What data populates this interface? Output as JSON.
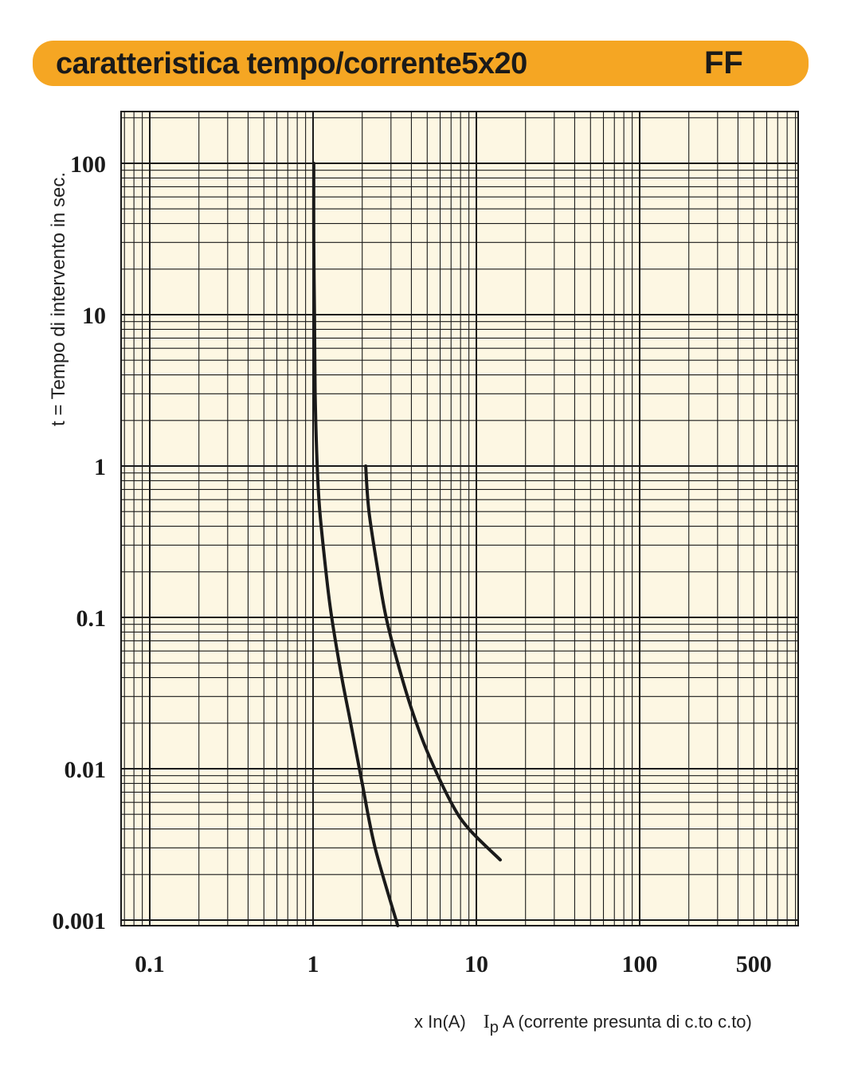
{
  "header": {
    "title": "caratteristica tempo/corrente5x20",
    "code": "FF",
    "background_color": "#f5a623"
  },
  "footer": {
    "unit_label": "x In(A)",
    "ip_symbol": "I",
    "ip_subscript": "p",
    "ip_description": "A (corrente presunta di c.to c.to)"
  },
  "chart_data": {
    "type": "line",
    "title": "caratteristica tempo/corrente5x20",
    "ylabel": "t = Tempo di intervento in sec.",
    "xlabel": "x In(A)   Ip A (corrente presunta di c.to c.to)",
    "x_scale": "log",
    "y_scale": "log",
    "xlim": [
      0.07,
      700
    ],
    "ylim": [
      0.0007,
      200
    ],
    "grid": true,
    "plot_background": "#fdf7e3",
    "x_ticks": [
      0.1,
      1,
      10,
      100,
      500
    ],
    "x_tick_labels": [
      "0.1",
      "1",
      "10",
      "100",
      "500"
    ],
    "y_ticks": [
      100,
      10,
      1,
      0.1,
      0.01,
      0.001
    ],
    "y_tick_labels": [
      "100",
      "10",
      "1",
      "0.1",
      "0.01",
      "0.001"
    ],
    "series": [
      {
        "points": [
          [
            1.01,
            100
          ],
          [
            1.01,
            30
          ],
          [
            1.02,
            10
          ],
          [
            1.03,
            3
          ],
          [
            1.06,
            1
          ],
          [
            1.1,
            0.5
          ],
          [
            1.2,
            0.2
          ],
          [
            1.3,
            0.1
          ],
          [
            1.5,
            0.04
          ],
          [
            1.7,
            0.02
          ],
          [
            2.0,
            0.008
          ],
          [
            2.4,
            0.003
          ],
          [
            3.3,
            0.0007
          ]
        ]
      },
      {
        "points": [
          [
            2.1,
            1
          ],
          [
            2.2,
            0.5
          ],
          [
            2.5,
            0.2
          ],
          [
            2.8,
            0.1
          ],
          [
            3.3,
            0.05
          ],
          [
            4.0,
            0.025
          ],
          [
            5.0,
            0.013
          ],
          [
            7.0,
            0.006
          ],
          [
            9.0,
            0.004
          ],
          [
            14,
            0.0025
          ]
        ]
      }
    ]
  }
}
